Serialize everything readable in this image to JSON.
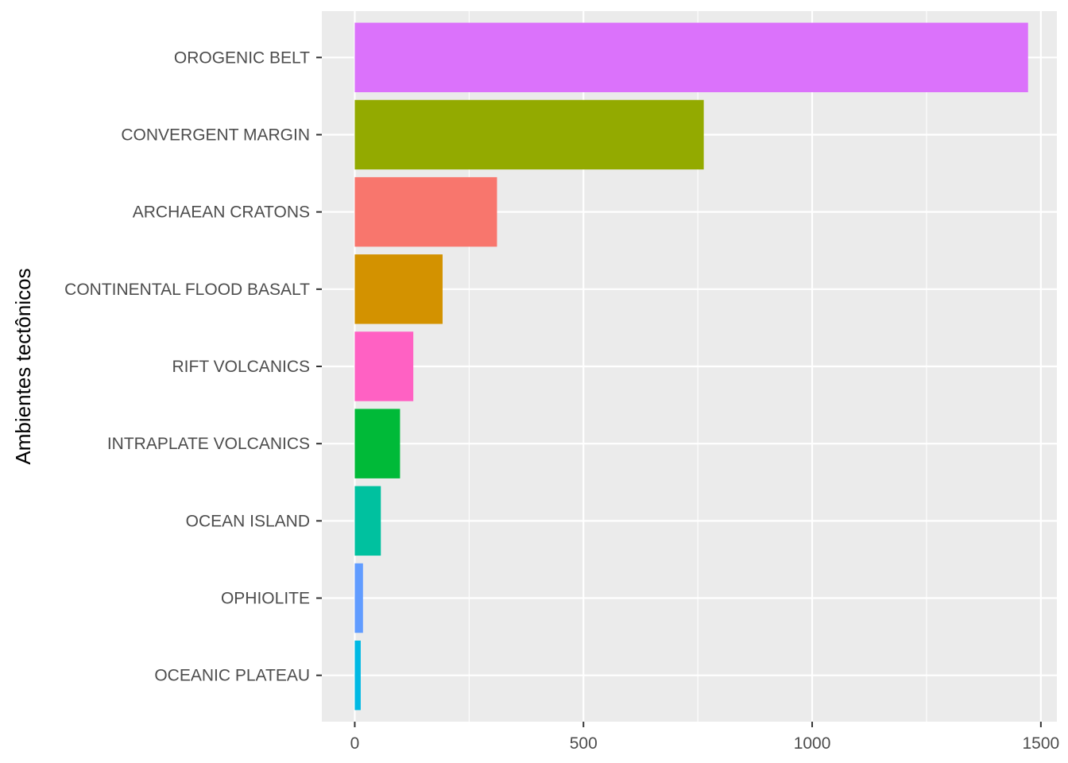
{
  "chart_data": {
    "type": "bar",
    "orientation": "horizontal",
    "title": "",
    "xlabel": "",
    "ylabel": "Ambientes tectônicos",
    "categories": [
      "OROGENIC BELT",
      "CONVERGENT MARGIN",
      "ARCHAEAN CRATONS",
      "CONTINENTAL FLOOD BASALT",
      "RIFT VOLCANICS",
      "INTRAPLATE VOLCANICS",
      "OCEAN ISLAND",
      "OPHIOLITE",
      "OCEANIC PLATEAU"
    ],
    "values": [
      1472,
      763,
      311,
      192,
      128,
      99,
      57,
      18,
      13
    ],
    "colors": [
      "#DB72FB",
      "#93AA00",
      "#F8766D",
      "#D39200",
      "#FF61C3",
      "#00BA38",
      "#00C19F",
      "#619CFF",
      "#00B9E3"
    ],
    "xlim": [
      -72,
      1535
    ],
    "x_ticks": [
      0,
      500,
      1000,
      1500
    ],
    "x_tick_labels": [
      "0",
      "500",
      "1000",
      "1500"
    ],
    "grid": true,
    "legend": "none",
    "panel_background": "#EBEBEB",
    "grid_color": "#FFFFFF"
  }
}
